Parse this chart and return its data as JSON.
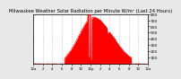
{
  "title": "Milwaukee Weather Solar Radiation per Minute W/m² (Last 24 Hours)",
  "title_fontsize": 3.8,
  "background_color": "#e8e8e8",
  "plot_bg_color": "#ffffff",
  "line_color": "#ff0000",
  "fill_color": "#ff0000",
  "ylim": [
    0,
    800
  ],
  "yticks": [
    100,
    200,
    300,
    400,
    500,
    600,
    700,
    800
  ],
  "ylabel_fontsize": 3.2,
  "xlabel_fontsize": 2.8,
  "grid_color": "#aaaaaa",
  "num_points": 1440,
  "xtick_hours": [
    0,
    2,
    4,
    6,
    8,
    10,
    12,
    14,
    16,
    18,
    20,
    22,
    24
  ],
  "xtick_labels": [
    "12a",
    "2",
    "4",
    "6",
    "8",
    "10",
    "12p",
    "2",
    "4",
    "6",
    "8",
    "10",
    "12a"
  ]
}
